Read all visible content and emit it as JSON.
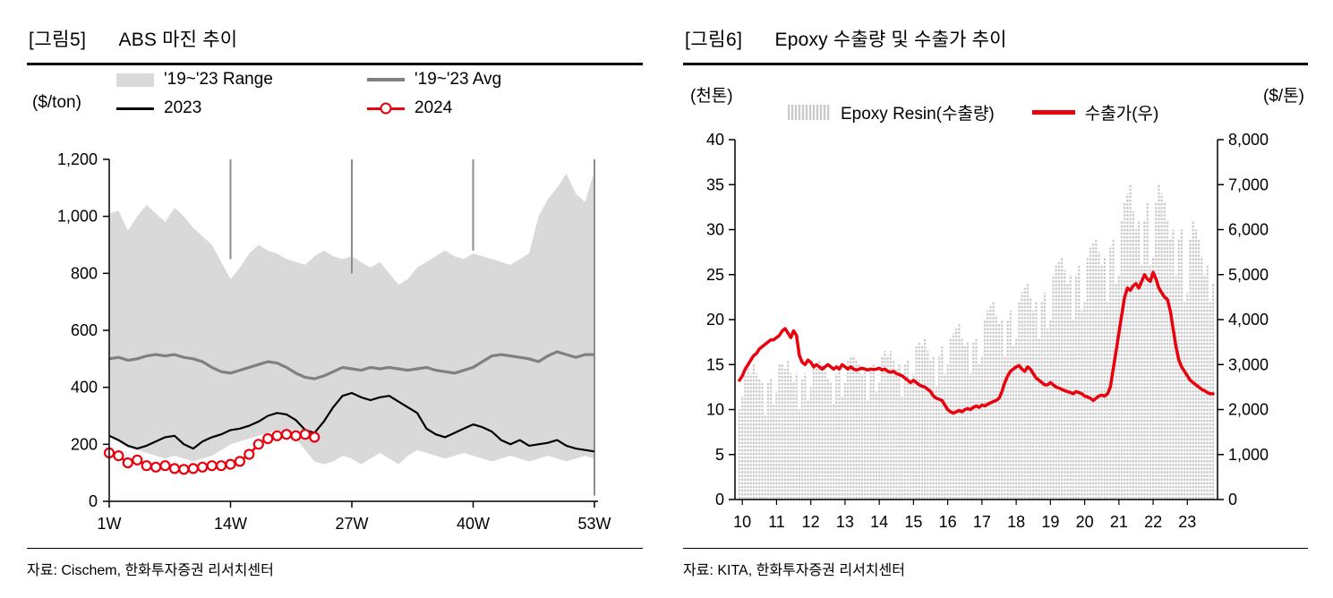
{
  "figures": [
    {
      "tag": "[그림5]",
      "title": "ABS 마진 추이",
      "source": "자료: Cischem, 한화투자증권 리서치센터"
    },
    {
      "tag": "[그림6]",
      "title": "Epoxy 수출량 및 수출가 추이",
      "source": "자료: KITA, 한화투자증권 리서치센터"
    }
  ],
  "chart_data": [
    {
      "type": "line",
      "title": "ABS 마진 추이",
      "ylabel": "($/ton)",
      "ylim": [
        0,
        1200
      ],
      "yticks": [
        0,
        200,
        400,
        600,
        800,
        1000,
        1200
      ],
      "ytick_labels": [
        "0",
        "200",
        "400",
        "600",
        "800",
        "1,000",
        "1,200"
      ],
      "x_unit": "week",
      "xlim": [
        1,
        53
      ],
      "xticks": [
        1,
        14,
        27,
        40,
        53
      ],
      "xtick_labels": [
        "1W",
        "14W",
        "27W",
        "40W",
        "53W"
      ],
      "legend_position": "top-inside",
      "grid": false,
      "series": [
        {
          "name": "'19~'23 Range",
          "type": "band",
          "color": "#d9d9d9",
          "upper": [
            1010,
            1020,
            950,
            1000,
            1040,
            1010,
            980,
            1030,
            1000,
            960,
            930,
            900,
            840,
            780,
            820,
            870,
            900,
            880,
            870,
            850,
            840,
            830,
            860,
            880,
            860,
            850,
            860,
            840,
            820,
            840,
            800,
            760,
            780,
            820,
            840,
            860,
            880,
            860,
            850,
            870,
            860,
            850,
            840,
            830,
            850,
            870,
            1000,
            1060,
            1100,
            1150,
            1080,
            1050,
            1160
          ],
          "lower": [
            230,
            210,
            190,
            180,
            170,
            160,
            150,
            160,
            150,
            140,
            150,
            160,
            180,
            200,
            210,
            220,
            230,
            240,
            250,
            240,
            220,
            180,
            140,
            130,
            140,
            160,
            150,
            130,
            150,
            170,
            150,
            130,
            160,
            180,
            170,
            160,
            150,
            160,
            170,
            160,
            150,
            140,
            150,
            160,
            150,
            140,
            150,
            160,
            150,
            140,
            150,
            160,
            150
          ]
        },
        {
          "name": "'19~'23 Avg",
          "type": "line",
          "color": "#808080",
          "width": 3.2,
          "values": [
            500,
            505,
            495,
            500,
            510,
            515,
            510,
            515,
            505,
            500,
            490,
            470,
            455,
            450,
            460,
            470,
            480,
            490,
            485,
            470,
            450,
            435,
            430,
            440,
            455,
            470,
            465,
            460,
            470,
            465,
            470,
            465,
            460,
            465,
            470,
            460,
            455,
            450,
            460,
            470,
            490,
            510,
            515,
            510,
            505,
            500,
            490,
            510,
            525,
            515,
            505,
            515,
            515
          ]
        },
        {
          "name": "2023",
          "type": "line",
          "color": "#000000",
          "width": 2.2,
          "values": [
            230,
            215,
            195,
            185,
            195,
            210,
            225,
            230,
            200,
            185,
            210,
            225,
            235,
            250,
            255,
            265,
            280,
            300,
            310,
            305,
            285,
            250,
            240,
            280,
            330,
            370,
            380,
            365,
            355,
            365,
            370,
            350,
            330,
            310,
            255,
            235,
            225,
            240,
            255,
            270,
            260,
            245,
            215,
            200,
            215,
            195,
            200,
            205,
            215,
            195,
            185,
            180,
            175
          ]
        },
        {
          "name": "2024",
          "type": "line",
          "color": "#e8000d",
          "width": 2.5,
          "marker": "open-circle",
          "values": [
            170,
            160,
            135,
            145,
            125,
            120,
            125,
            115,
            112,
            115,
            120,
            125,
            125,
            130,
            140,
            165,
            200,
            220,
            230,
            235,
            230,
            235,
            225
          ]
        }
      ],
      "vertical_marks": [
        {
          "week": 14,
          "from": 1200,
          "to": 850
        },
        {
          "week": 27,
          "from": 1200,
          "to": 800
        },
        {
          "week": 40,
          "from": 1200,
          "to": 880
        },
        {
          "week": 53,
          "from": 1200,
          "to": 20
        }
      ]
    },
    {
      "type": "bar+line",
      "title": "Epoxy 수출량 및 수출가 추이",
      "ylabel_left": "(천톤)",
      "ylabel_right": "($/톤)",
      "ylim_left": [
        0,
        40
      ],
      "yticks_left": [
        0,
        5,
        10,
        15,
        20,
        25,
        30,
        35,
        40
      ],
      "ylim_right": [
        0,
        8000
      ],
      "yticks_right": [
        0,
        1000,
        2000,
        3000,
        4000,
        5000,
        6000,
        7000,
        8000
      ],
      "ytick_labels_right": [
        "0",
        "1,000",
        "2,000",
        "3,000",
        "4,000",
        "5,000",
        "6,000",
        "7,000",
        "8,000"
      ],
      "x_start": "2010-01",
      "x_end": "2023-11",
      "xtick_labels": [
        "10",
        "11",
        "12",
        "13",
        "14",
        "15",
        "16",
        "17",
        "18",
        "19",
        "20",
        "21",
        "22",
        "23"
      ],
      "legend_position": "top-inside",
      "grid": false,
      "series": [
        {
          "name": "Epoxy Resin(수출량)",
          "type": "bar",
          "axis": "left",
          "unit": "천톤",
          "color": "#c9c9c9",
          "values": [
            10,
            11.5,
            14,
            14.5,
            14,
            15,
            14,
            13.5,
            13,
            9.5,
            13,
            13.5,
            10.5,
            12,
            15,
            15,
            14.5,
            15.5,
            14,
            13,
            14,
            10,
            13.5,
            14,
            11,
            12.5,
            15,
            15,
            15.5,
            15,
            14.5,
            13.5,
            13,
            10.5,
            14,
            14.5,
            11.5,
            13,
            15.5,
            16,
            16,
            15.5,
            15,
            14,
            14.5,
            11,
            14.5,
            15,
            12,
            13,
            16,
            16.5,
            16,
            16.5,
            15.5,
            14.5,
            15,
            11.5,
            15,
            15.5,
            13,
            14,
            17,
            17.5,
            17,
            18,
            16.5,
            15.5,
            16,
            12.5,
            16,
            17,
            14,
            15,
            18,
            18.5,
            19,
            19.5,
            18,
            17,
            17.5,
            14,
            17.5,
            18,
            15,
            16,
            20,
            21,
            21.5,
            22,
            20.5,
            19.5,
            20,
            16,
            20,
            21,
            17,
            18,
            22,
            23,
            23.5,
            24,
            22.5,
            21,
            22,
            18,
            22,
            23,
            19,
            20,
            25,
            26,
            26.5,
            27,
            25.5,
            24,
            25,
            20,
            25,
            26,
            21,
            22,
            27,
            28,
            28.5,
            29,
            27.5,
            26,
            27,
            22,
            28,
            29,
            24,
            25,
            31,
            33,
            34,
            35,
            32,
            30,
            31,
            26,
            31,
            33,
            26,
            27,
            33,
            35,
            34,
            33,
            31,
            29,
            30,
            25,
            29,
            30,
            22,
            23,
            29,
            31,
            30,
            29,
            27,
            25,
            26,
            22,
            24
          ]
        },
        {
          "name": "수출가(우)",
          "type": "line",
          "axis": "right",
          "unit": "$/톤",
          "color": "#e8000d",
          "width": 3.5,
          "values": [
            2650,
            2750,
            2900,
            3000,
            3100,
            3200,
            3250,
            3350,
            3400,
            3450,
            3500,
            3550,
            3550,
            3600,
            3650,
            3750,
            3800,
            3700,
            3600,
            3750,
            3650,
            3200,
            3050,
            3000,
            3100,
            3050,
            2950,
            3000,
            2950,
            2900,
            2950,
            3000,
            2950,
            2900,
            2950,
            2900,
            3000,
            2950,
            2900,
            2950,
            2900,
            2880,
            2900,
            2920,
            2900,
            2880,
            2900,
            2890,
            2900,
            2920,
            2880,
            2900,
            2850,
            2830,
            2850,
            2800,
            2780,
            2750,
            2700,
            2650,
            2600,
            2650,
            2600,
            2550,
            2520,
            2500,
            2450,
            2400,
            2300,
            2250,
            2230,
            2200,
            2100,
            2000,
            1950,
            1920,
            1950,
            1980,
            1950,
            2000,
            2020,
            2000,
            2050,
            2080,
            2050,
            2100,
            2080,
            2120,
            2150,
            2180,
            2200,
            2250,
            2400,
            2600,
            2750,
            2850,
            2900,
            2950,
            2980,
            2900,
            2850,
            2950,
            2900,
            2800,
            2700,
            2650,
            2600,
            2550,
            2550,
            2600,
            2550,
            2500,
            2480,
            2450,
            2420,
            2400,
            2380,
            2350,
            2400,
            2380,
            2350,
            2300,
            2280,
            2250,
            2200,
            2250,
            2300,
            2320,
            2300,
            2350,
            2500,
            2900,
            3300,
            3700,
            4100,
            4500,
            4700,
            4650,
            4750,
            4800,
            4700,
            4850,
            5000,
            4900,
            4850,
            5050,
            4900,
            4700,
            4600,
            4500,
            4450,
            4200,
            3800,
            3400,
            3100,
            2950,
            2850,
            2750,
            2650,
            2600,
            2550,
            2500,
            2450,
            2420,
            2380,
            2350,
            2350
          ]
        }
      ]
    }
  ]
}
